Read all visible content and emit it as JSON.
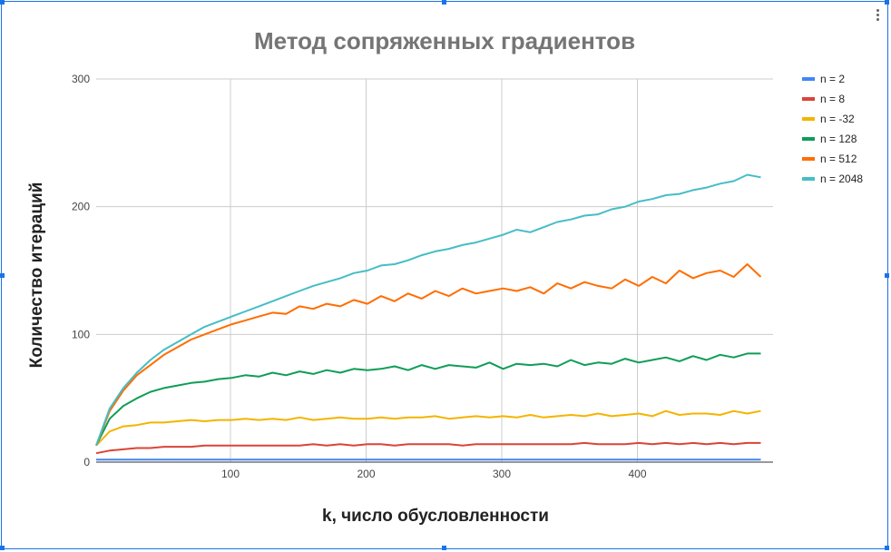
{
  "chart_data": {
    "type": "line",
    "title": "Метод сопряженных градиентов",
    "xlabel": "k, число обусловленности",
    "ylabel": "Количество итераций",
    "xlim": [
      1,
      500
    ],
    "ylim": [
      0,
      300
    ],
    "x_ticks": [
      100,
      200,
      300,
      400
    ],
    "x_tick_labels": [
      "100",
      "200",
      "300",
      "400"
    ],
    "y_ticks": [
      0,
      100,
      200,
      300
    ],
    "y_tick_labels": [
      "0",
      "100",
      "200",
      "300"
    ],
    "grid": true,
    "legend_position": "right",
    "x_start": 1,
    "x_step": 10,
    "series": [
      {
        "name": "n = 2",
        "color": "#4285f4",
        "values": [
          2,
          2,
          2,
          2,
          2,
          2,
          2,
          2,
          2,
          2,
          2,
          2,
          2,
          2,
          2,
          2,
          2,
          2,
          2,
          2,
          2,
          2,
          2,
          2,
          2,
          2,
          2,
          2,
          2,
          2,
          2,
          2,
          2,
          2,
          2,
          2,
          2,
          2,
          2,
          2,
          2,
          2,
          2,
          2,
          2,
          2,
          2,
          2,
          2,
          2
        ]
      },
      {
        "name": "n = 8",
        "color": "#db4437",
        "values": [
          7,
          9,
          10,
          11,
          11,
          12,
          12,
          12,
          13,
          13,
          13,
          13,
          13,
          13,
          13,
          13,
          14,
          13,
          14,
          13,
          14,
          14,
          13,
          14,
          14,
          14,
          14,
          13,
          14,
          14,
          14,
          14,
          14,
          14,
          14,
          14,
          15,
          14,
          14,
          14,
          15,
          14,
          15,
          14,
          15,
          14,
          15,
          14,
          15,
          15
        ]
      },
      {
        "name": "n = -32",
        "color": "#f4b400",
        "values": [
          13,
          24,
          28,
          29,
          31,
          31,
          32,
          33,
          32,
          33,
          33,
          34,
          33,
          34,
          33,
          35,
          33,
          34,
          35,
          34,
          34,
          35,
          34,
          35,
          35,
          36,
          34,
          35,
          36,
          35,
          36,
          35,
          37,
          35,
          36,
          37,
          36,
          38,
          36,
          37,
          38,
          36,
          40,
          37,
          38,
          38,
          37,
          40,
          38,
          40
        ]
      },
      {
        "name": "n = 128",
        "color": "#0f9d58",
        "values": [
          13,
          34,
          44,
          50,
          55,
          58,
          60,
          62,
          63,
          65,
          66,
          68,
          67,
          70,
          68,
          71,
          69,
          72,
          70,
          73,
          72,
          73,
          75,
          72,
          76,
          73,
          76,
          75,
          74,
          78,
          73,
          77,
          76,
          77,
          75,
          80,
          76,
          78,
          77,
          81,
          78,
          80,
          82,
          79,
          83,
          80,
          84,
          82,
          85,
          85
        ]
      },
      {
        "name": "n = 512",
        "color": "#ff6d00",
        "values": [
          13,
          40,
          56,
          68,
          76,
          84,
          90,
          96,
          100,
          104,
          108,
          111,
          114,
          117,
          116,
          122,
          120,
          124,
          122,
          127,
          124,
          130,
          126,
          132,
          128,
          134,
          130,
          136,
          132,
          134,
          136,
          134,
          137,
          132,
          140,
          136,
          141,
          138,
          136,
          143,
          138,
          145,
          140,
          150,
          144,
          148,
          150,
          145,
          155,
          145
        ]
      },
      {
        "name": "n = 2048",
        "color": "#46bdc6",
        "values": [
          13,
          42,
          58,
          70,
          80,
          88,
          94,
          100,
          106,
          110,
          114,
          118,
          122,
          126,
          130,
          134,
          138,
          141,
          144,
          148,
          150,
          154,
          155,
          158,
          162,
          165,
          167,
          170,
          172,
          175,
          178,
          182,
          180,
          184,
          188,
          190,
          193,
          194,
          198,
          200,
          204,
          206,
          209,
          210,
          213,
          215,
          218,
          220,
          225,
          223
        ]
      }
    ]
  }
}
